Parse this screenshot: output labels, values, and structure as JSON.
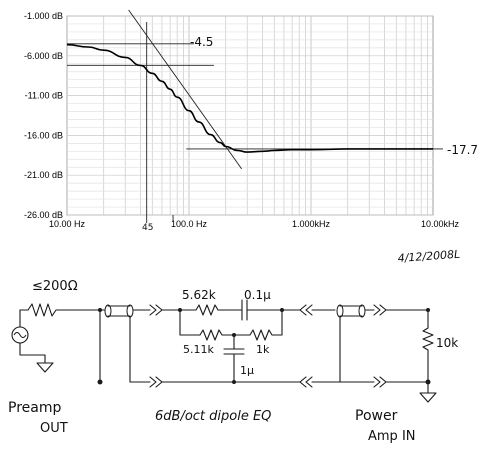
{
  "chart_data": {
    "type": "line",
    "title": "",
    "xlabel": "",
    "ylabel": "",
    "x_scale": "log",
    "xlim": [
      10,
      10000
    ],
    "ylim": [
      -26,
      -1
    ],
    "x_ticks": [
      {
        "value": 10,
        "label": "10.00 Hz"
      },
      {
        "value": 100,
        "label": "100.0 Hz"
      },
      {
        "value": 1000,
        "label": "1.000kHz"
      },
      {
        "value": 10000,
        "label": "10.00kHz"
      }
    ],
    "y_ticks": [
      {
        "value": -1,
        "label": "-1.000 dB"
      },
      {
        "value": -6,
        "label": "-6.000 dB"
      },
      {
        "value": -11,
        "label": "-11.00 dB"
      },
      {
        "value": -16,
        "label": "-16.00 dB"
      },
      {
        "value": -21,
        "label": "-21.00 dB"
      },
      {
        "value": -26,
        "label": "-26.00 dB"
      }
    ],
    "grid": true,
    "series": [
      {
        "name": "",
        "x": [
          10,
          15,
          20,
          30,
          40,
          50,
          60,
          70,
          80,
          100,
          120,
          150,
          180,
          200,
          250,
          300,
          400,
          500,
          700,
          1000,
          2000,
          5000,
          10000
        ],
        "y": [
          -4.6,
          -4.9,
          -5.3,
          -6.2,
          -7.2,
          -8.2,
          -9.2,
          -10.2,
          -11.2,
          -12.9,
          -14.3,
          -15.9,
          -16.9,
          -17.4,
          -17.9,
          -18.1,
          -18.0,
          -17.9,
          -17.8,
          -17.8,
          -17.7,
          -17.7,
          -17.7
        ]
      }
    ],
    "annotations": [
      {
        "text": "-4.5",
        "value_db": -4.5
      },
      {
        "text": "-17.7",
        "value_db": -17.7
      },
      {
        "text": "45",
        "value_hz": 45
      },
      {
        "text": "4/12/2008L"
      }
    ]
  },
  "schematic": {
    "labels": {
      "source_impedance": "≤200Ω",
      "r_series": "5.62k",
      "c_series": "0.1µ",
      "r_left": "5.11k",
      "r_right": "1k",
      "c_shunt": "1µ",
      "r_load": "10k",
      "preamp": "Preamp",
      "out": "OUT",
      "title": "6dB/oct dipole EQ",
      "power": "Power",
      "amp_in": "Amp IN"
    },
    "icons": {
      "source": "ac-source-icon",
      "ground": "ground-icon"
    }
  }
}
